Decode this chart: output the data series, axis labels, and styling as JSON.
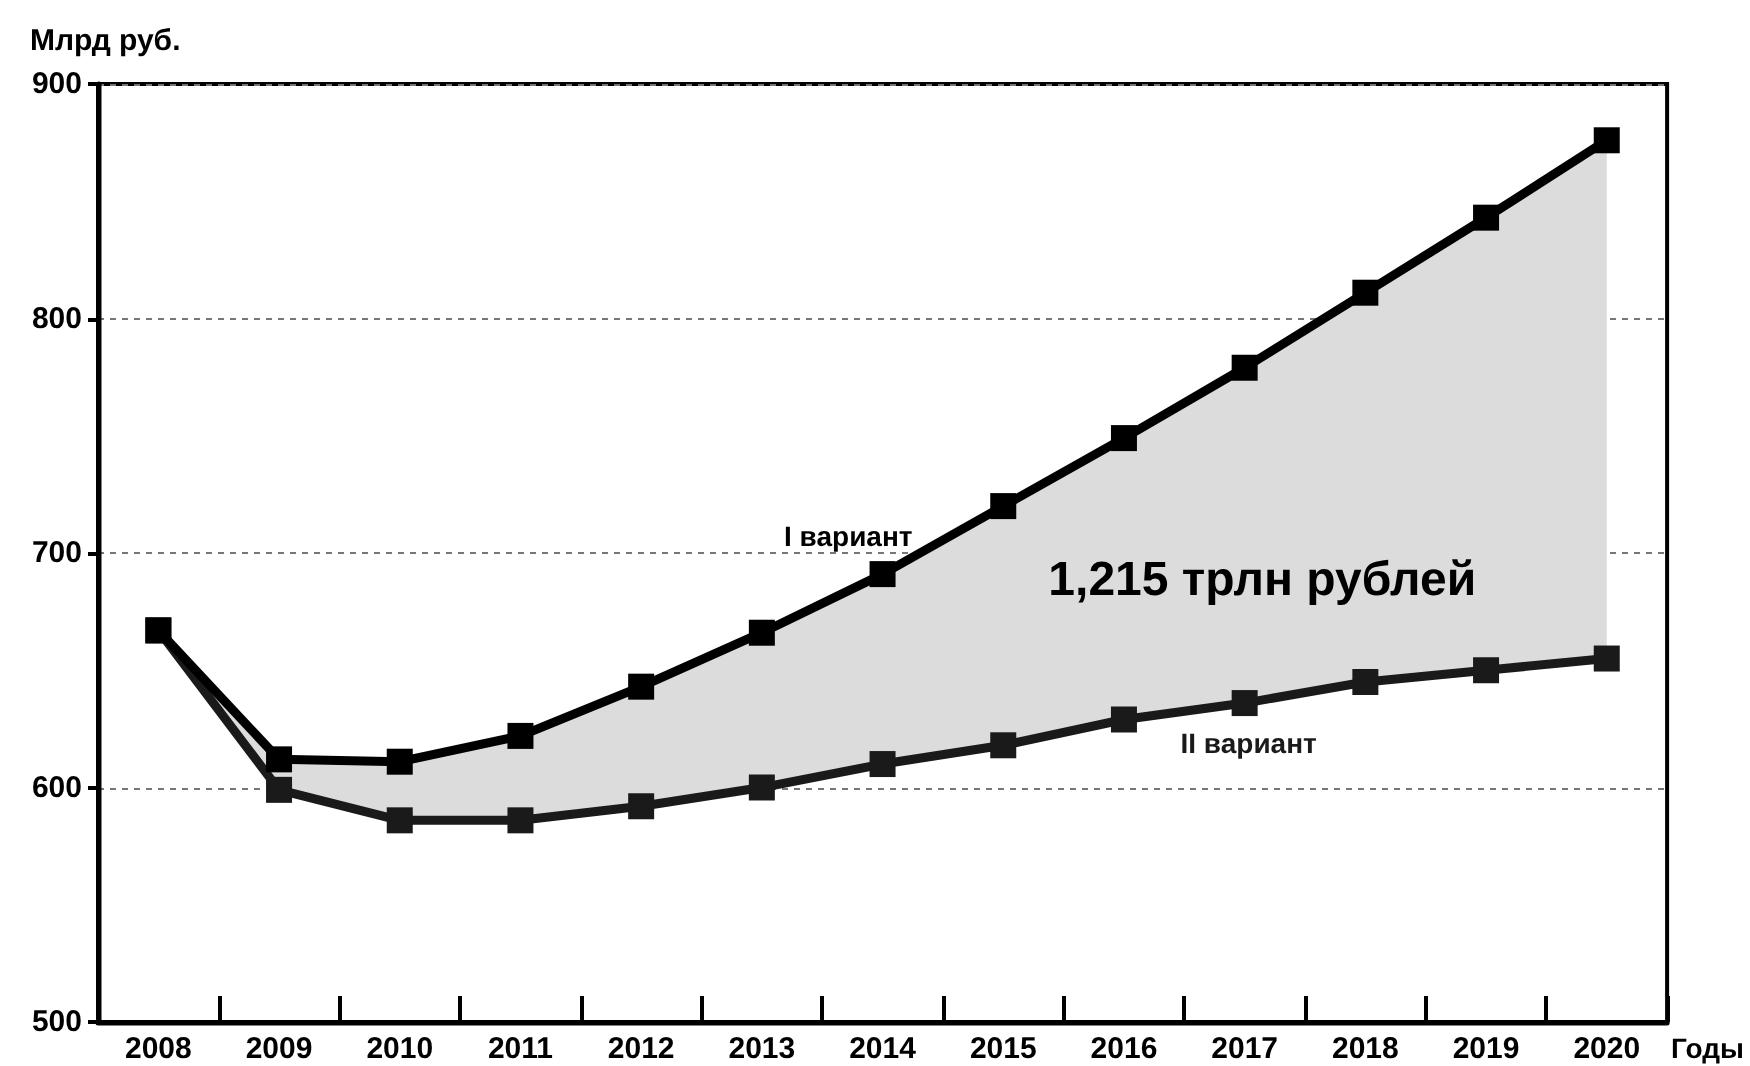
{
  "chart_data": {
    "type": "line",
    "xlabel": "Годы",
    "ylabel": "Млрд руб.",
    "categories": [
      "2008",
      "2009",
      "2010",
      "2011",
      "2012",
      "2013",
      "2014",
      "2015",
      "2016",
      "2017",
      "2018",
      "2019",
      "2020"
    ],
    "series": [
      {
        "name": "I вариант",
        "color": "#000000",
        "values": [
          667,
          612,
          611,
          622,
          643,
          666,
          691,
          720,
          749,
          779,
          811,
          843,
          876
        ],
        "lower": [
          667,
          599,
          586,
          586,
          592,
          600,
          610,
          618,
          629,
          636,
          645,
          650,
          655
        ],
        "upper": [
          667,
          612,
          611,
          622,
          643,
          666,
          691,
          720,
          749,
          779,
          811,
          843,
          876
        ]
      },
      {
        "name": "II вариант",
        "color": "#1a1a1a",
        "values": [
          667,
          599,
          586,
          586,
          592,
          600,
          610,
          618,
          629,
          636,
          645,
          650,
          655
        ]
      }
    ],
    "ylim": [
      500,
      900
    ],
    "yticks": [
      500,
      600,
      700,
      800,
      900
    ],
    "grid": "y",
    "legend": false,
    "marker": "square",
    "annotations": [
      "1,215 трлн рублей"
    ]
  }
}
